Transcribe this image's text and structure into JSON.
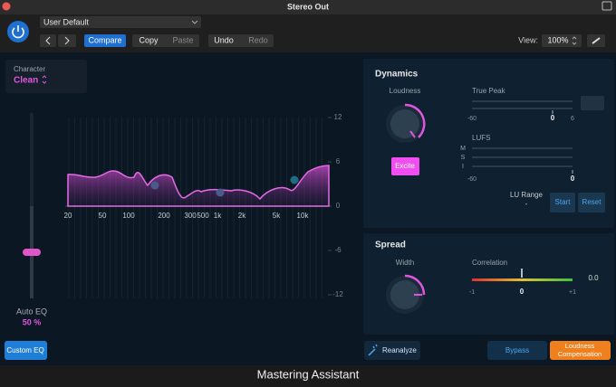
{
  "window": {
    "title": "Stereo Out"
  },
  "toolbar": {
    "preset": "User Default",
    "buttons": [
      "Compare",
      "Copy",
      "Paste",
      "Undo",
      "Redo"
    ],
    "view_label": "View:",
    "view_value": "100%"
  },
  "character": {
    "label": "Character",
    "value": "Clean"
  },
  "eq": {
    "freq_labels": [
      "20",
      "50",
      "100",
      "200",
      "300",
      "500",
      "1k",
      "2k",
      "5k",
      "10k"
    ],
    "db_labels": [
      "12",
      "6",
      "0",
      "-6",
      "-12"
    ],
    "auto_eq_label": "Auto EQ",
    "auto_eq_value": "50 %",
    "custom_button": "Custom EQ"
  },
  "dynamics": {
    "title": "Dynamics",
    "loudness_label": "Loudness",
    "excite_button": "Excite",
    "true_peak": {
      "label": "True Peak",
      "min": "-60",
      "mid": "0",
      "max": "6"
    },
    "lufs": {
      "label": "LUFS",
      "rows": [
        "M",
        "S",
        "I"
      ],
      "min": "-60",
      "max": "0"
    },
    "lu_range": {
      "label": "LU Range",
      "value": "-"
    },
    "start_button": "Start",
    "reset_button": "Reset"
  },
  "spread": {
    "title": "Spread",
    "width_label": "Width",
    "correlation": {
      "label": "Correlation",
      "value": "0.0",
      "min": "-1",
      "mid": "0",
      "max": "+1"
    }
  },
  "bottom": {
    "reanalyze": "Reanalyze",
    "bypass": "Bypass",
    "loudness_compensation": [
      "Loudness",
      "Compensation"
    ]
  },
  "footer": {
    "title": "Mastering Assistant"
  }
}
